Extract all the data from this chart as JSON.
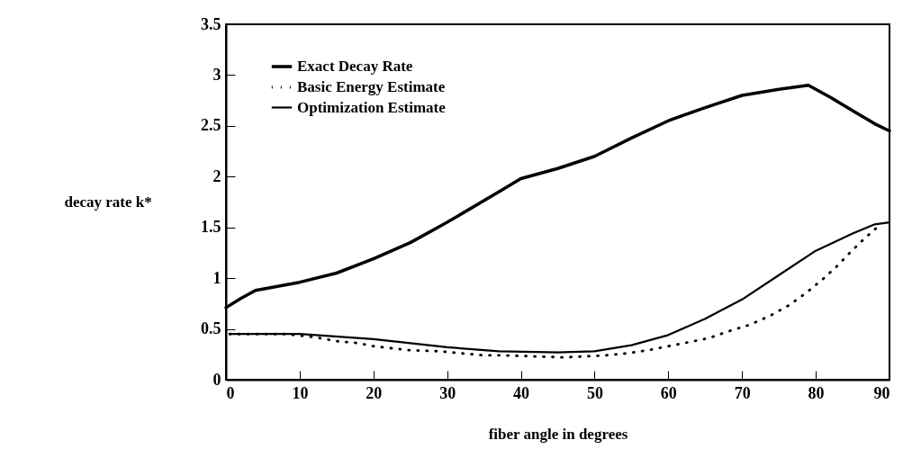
{
  "chart_data": {
    "type": "line",
    "xlabel": "fiber angle in degrees",
    "ylabel": "decay rate k*",
    "xlim": [
      0,
      90
    ],
    "ylim": [
      0,
      3.5
    ],
    "xticks": [
      0,
      10,
      20,
      30,
      40,
      50,
      60,
      70,
      80,
      90
    ],
    "yticks": [
      0,
      0.5,
      1,
      1.5,
      2,
      2.5,
      3,
      3.5
    ],
    "legend": "top left",
    "grid": false,
    "series": [
      {
        "name": "Exact Decay Rate",
        "color": "#000000",
        "line_style": "solid",
        "x": [
          0,
          2,
          4,
          7,
          10,
          15,
          20,
          25,
          30,
          37,
          40,
          45,
          50,
          55,
          60,
          65,
          70,
          75,
          79,
          82,
          85,
          88,
          90
        ],
        "values": [
          0.71,
          0.8,
          0.88,
          0.92,
          0.96,
          1.05,
          1.19,
          1.35,
          1.55,
          1.85,
          1.98,
          2.08,
          2.2,
          2.38,
          2.55,
          2.68,
          2.8,
          2.86,
          2.9,
          2.78,
          2.65,
          2.52,
          2.45
        ]
      },
      {
        "name": "Basic Energy Estimate",
        "color": "#000000",
        "line_style": "dotted",
        "x": [
          0.5,
          8,
          12,
          15,
          18,
          20,
          25,
          29,
          32,
          35,
          37.5,
          45.8,
          48.7,
          51.5,
          54.4,
          57.2,
          60,
          62.8,
          65.5,
          68.3,
          71,
          73.8,
          76.3,
          78.6,
          80.8,
          82.9,
          84.9,
          86.9,
          88.8
        ],
        "values": [
          0.45,
          0.45,
          0.42,
          0.38,
          0.36,
          0.33,
          0.29,
          0.28,
          0.26,
          0.24,
          0.24,
          0.22,
          0.23,
          0.24,
          0.26,
          0.29,
          0.33,
          0.37,
          0.41,
          0.48,
          0.54,
          0.63,
          0.73,
          0.85,
          0.98,
          1.12,
          1.27,
          1.41,
          1.53
        ]
      },
      {
        "name": "Optimization Estimate",
        "color": "#000000",
        "line_style": "solid",
        "x": [
          0.8,
          5,
          10,
          20,
          30,
          37,
          45,
          50,
          55,
          60,
          65,
          70,
          75,
          80,
          85,
          88,
          90
        ],
        "values": [
          0.45,
          0.45,
          0.45,
          0.4,
          0.32,
          0.28,
          0.27,
          0.28,
          0.34,
          0.44,
          0.6,
          0.79,
          1.03,
          1.27,
          1.44,
          1.53,
          1.55
        ]
      }
    ]
  }
}
